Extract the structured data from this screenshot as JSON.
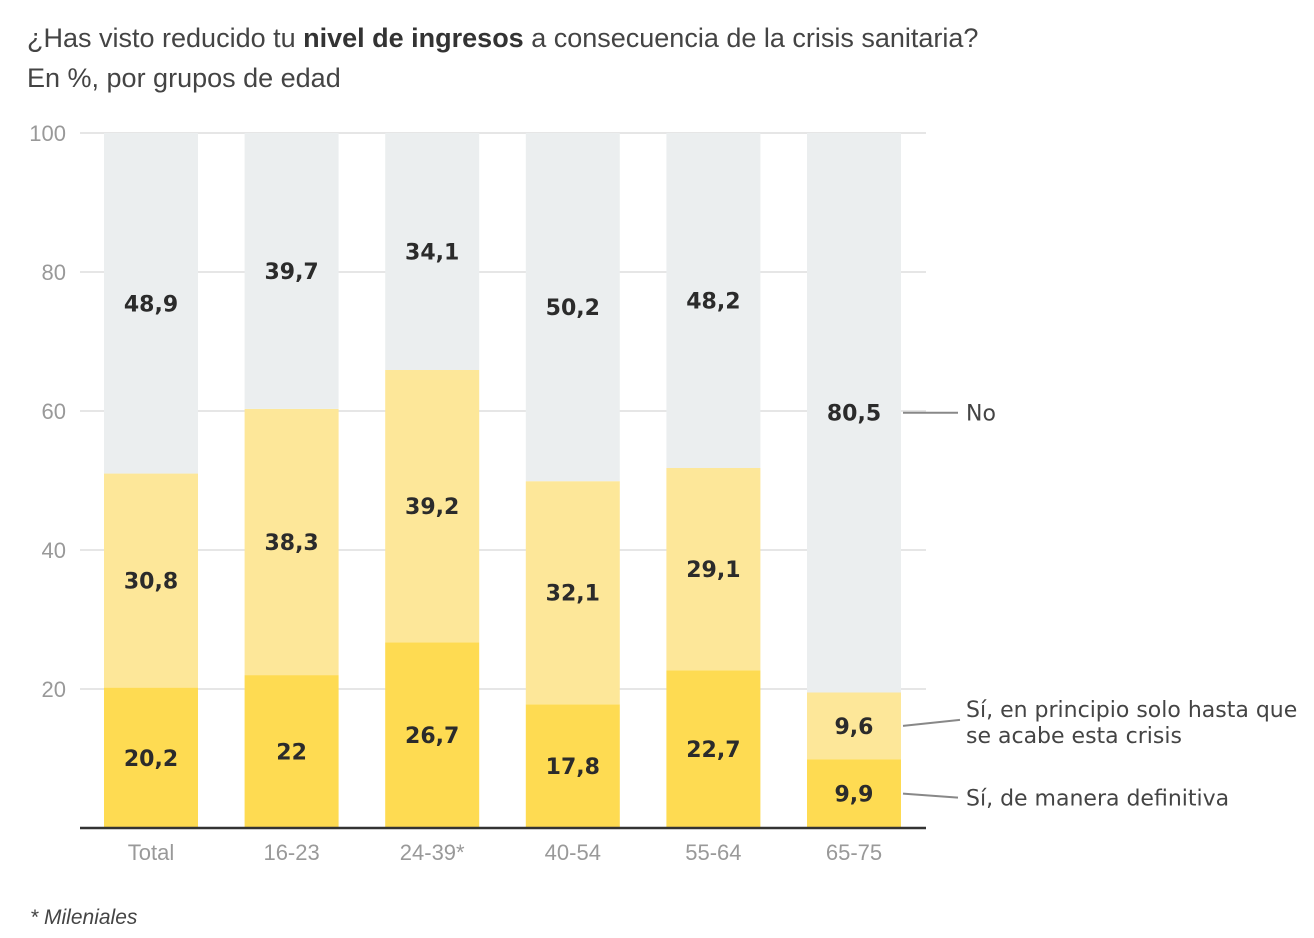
{
  "header": {
    "title_pre": "¿Has visto reducido tu ",
    "title_bold": "nivel de ingresos",
    "title_post": " a consecuencia de la crisis sanitaria?",
    "subtitle": "En %, por grupos de edad"
  },
  "footnote": "* Mileniales",
  "chart_data": {
    "type": "bar",
    "stacked": true,
    "title": "¿Has visto reducido tu nivel de ingresos a consecuencia de la crisis sanitaria?",
    "subtitle": "En %, por grupos de edad",
    "xlabel": "",
    "ylabel": "",
    "ylim": [
      0,
      100
    ],
    "yticks": [
      0,
      20,
      40,
      60,
      80,
      100
    ],
    "ytick_labels": [
      "",
      "20",
      "40",
      "60",
      "80",
      "100"
    ],
    "grid": true,
    "legend_placement": "right (direct labels)",
    "categories": [
      "Total",
      "16-23",
      "24-39*",
      "40-54",
      "55-64",
      "65-75"
    ],
    "series": [
      {
        "name": "Sí, de manera definitiva",
        "color": "#fedb52",
        "values": [
          20.2,
          22,
          26.7,
          17.8,
          22.7,
          9.9
        ],
        "labels": [
          "20,2",
          "22",
          "26,7",
          "17,8",
          "22,7",
          "9,9"
        ]
      },
      {
        "name": "Sí, en principio solo hasta que se acabe esta crisis",
        "color": "#fde799",
        "legend_lines": [
          "Sí, en principio solo hasta que",
          "se acabe esta crisis"
        ],
        "values": [
          30.8,
          38.3,
          39.2,
          32.1,
          29.1,
          9.6
        ],
        "labels": [
          "30,8",
          "38,3",
          "39,2",
          "32,1",
          "29,1",
          "9,6"
        ]
      },
      {
        "name": "No",
        "color": "#ebeeef",
        "values": [
          48.9,
          39.7,
          34.1,
          50.2,
          48.2,
          80.5
        ],
        "labels": [
          "48,9",
          "39,7",
          "34,1",
          "50,2",
          "48,2",
          "80,5"
        ]
      }
    ],
    "annotations": [
      "* Mileniales"
    ]
  }
}
